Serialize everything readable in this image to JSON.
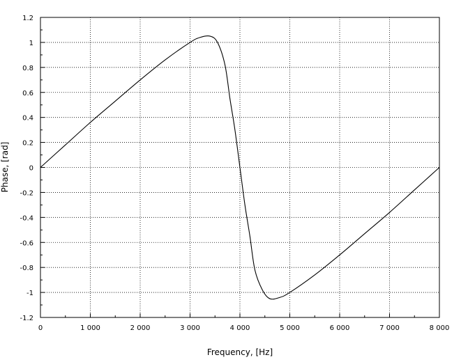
{
  "chart_data": {
    "type": "line",
    "title": "",
    "xlabel": "Frequency, [Hz]",
    "ylabel": "Phase, [rad]",
    "xlim": [
      0,
      8000
    ],
    "ylim": [
      -1.2,
      1.2
    ],
    "grid": true,
    "x_ticks": [
      0,
      1000,
      2000,
      3000,
      4000,
      5000,
      6000,
      7000,
      8000
    ],
    "x_tick_labels": [
      "0",
      "1 000",
      "2 000",
      "3 000",
      "4 000",
      "5 000",
      "6 000",
      "7 000",
      "8 000"
    ],
    "y_ticks": [
      -1.2,
      -1,
      -0.8,
      -0.6,
      -0.4,
      -0.2,
      0,
      0.2,
      0.4,
      0.6,
      0.8,
      1,
      1.2
    ],
    "y_tick_labels": [
      "-1.2",
      "-1",
      "-0.8",
      "-0.6",
      "-0.4",
      "-0.2",
      "0",
      "0.2",
      "0.4",
      "0.6",
      "0.8",
      "1",
      "1.2"
    ],
    "series": [
      {
        "x": [
          0,
          500,
          1000,
          1500,
          2000,
          2500,
          3000,
          3200,
          3400,
          3550,
          3700,
          3800,
          3900,
          4000,
          4100,
          4200,
          4300,
          4450,
          4600,
          4800,
          5000,
          5500,
          6000,
          6500,
          7000,
          7500,
          8000
        ],
        "y": [
          0,
          0.18,
          0.36,
          0.53,
          0.7,
          0.86,
          1.0,
          1.04,
          1.05,
          1.0,
          0.82,
          0.55,
          0.3,
          0.0,
          -0.3,
          -0.55,
          -0.82,
          -0.98,
          -1.05,
          -1.04,
          -1.0,
          -0.86,
          -0.7,
          -0.53,
          -0.36,
          -0.18,
          0
        ]
      }
    ]
  }
}
